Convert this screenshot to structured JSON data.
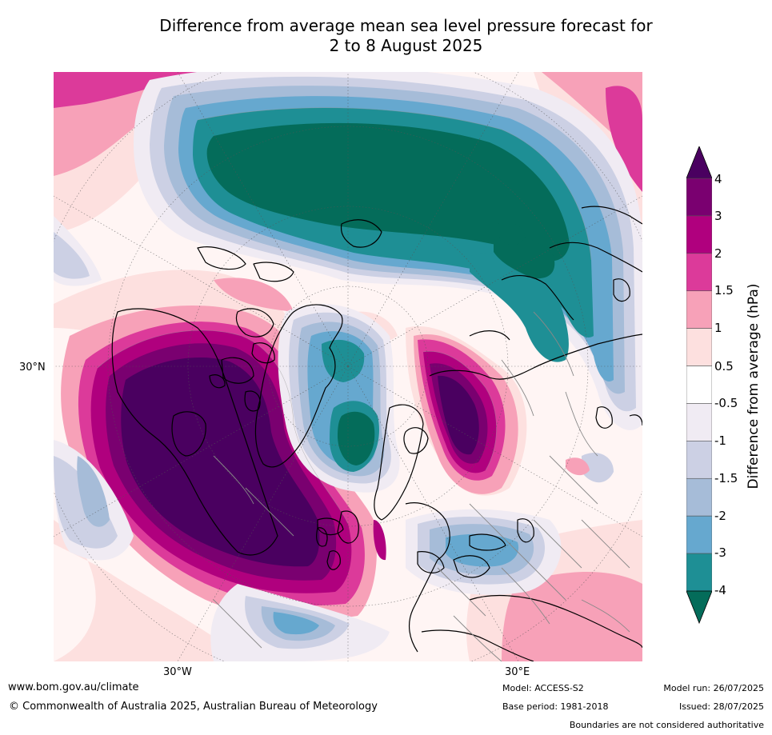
{
  "title": {
    "line1": "Difference from average mean sea level pressure forecast for",
    "line2": "2 to 8 August 2025"
  },
  "map": {
    "projection": "polar stereographic, North Pole centred",
    "longitude_labels": [
      "30°W",
      "30°E"
    ],
    "latitude_labels": [
      "30°N"
    ],
    "graticule": "dotted"
  },
  "colorbar": {
    "label": "Difference from average (hPa)",
    "ticks": [
      "4",
      "3",
      "2",
      "1.5",
      "1",
      "0.5",
      "-0.5",
      "-1",
      "-1.5",
      "-2",
      "-3",
      "-4"
    ],
    "bands": [
      {
        "range": ">4",
        "color": "#4a0060"
      },
      {
        "range": "3 to 4",
        "color": "#7a0070"
      },
      {
        "range": "2 to 3",
        "color": "#b0007e"
      },
      {
        "range": "1.5 to 2",
        "color": "#dc3a9a"
      },
      {
        "range": "1 to 1.5",
        "color": "#f7a1b8"
      },
      {
        "range": "0.5 to 1",
        "color": "#fde0df"
      },
      {
        "range": "-0.5 to 0.5",
        "color": "#ffffff"
      },
      {
        "range": "-1 to -0.5",
        "color": "#f0ebf3"
      },
      {
        "range": "-1.5 to -1",
        "color": "#ccd0e4"
      },
      {
        "range": "-2 to -1.5",
        "color": "#a6bcd8"
      },
      {
        "range": "-3 to -2",
        "color": "#66a8cf"
      },
      {
        "range": "-4 to -3",
        "color": "#1e8f95"
      },
      {
        "range": "<-4",
        "color": "#046c5a"
      }
    ]
  },
  "footer": {
    "url": "www.bom.gov.au/climate",
    "copyright": "© Commonwealth of Australia 2025, Australian Bureau of Meteorology",
    "model": "Model: ACCESS-S2",
    "base_period": "Base period: 1981-2018",
    "model_run": "Model run: 26/07/2025",
    "issued": "Issued: 28/07/2025",
    "boundaries_note": "Boundaries are not considered authoritative"
  }
}
